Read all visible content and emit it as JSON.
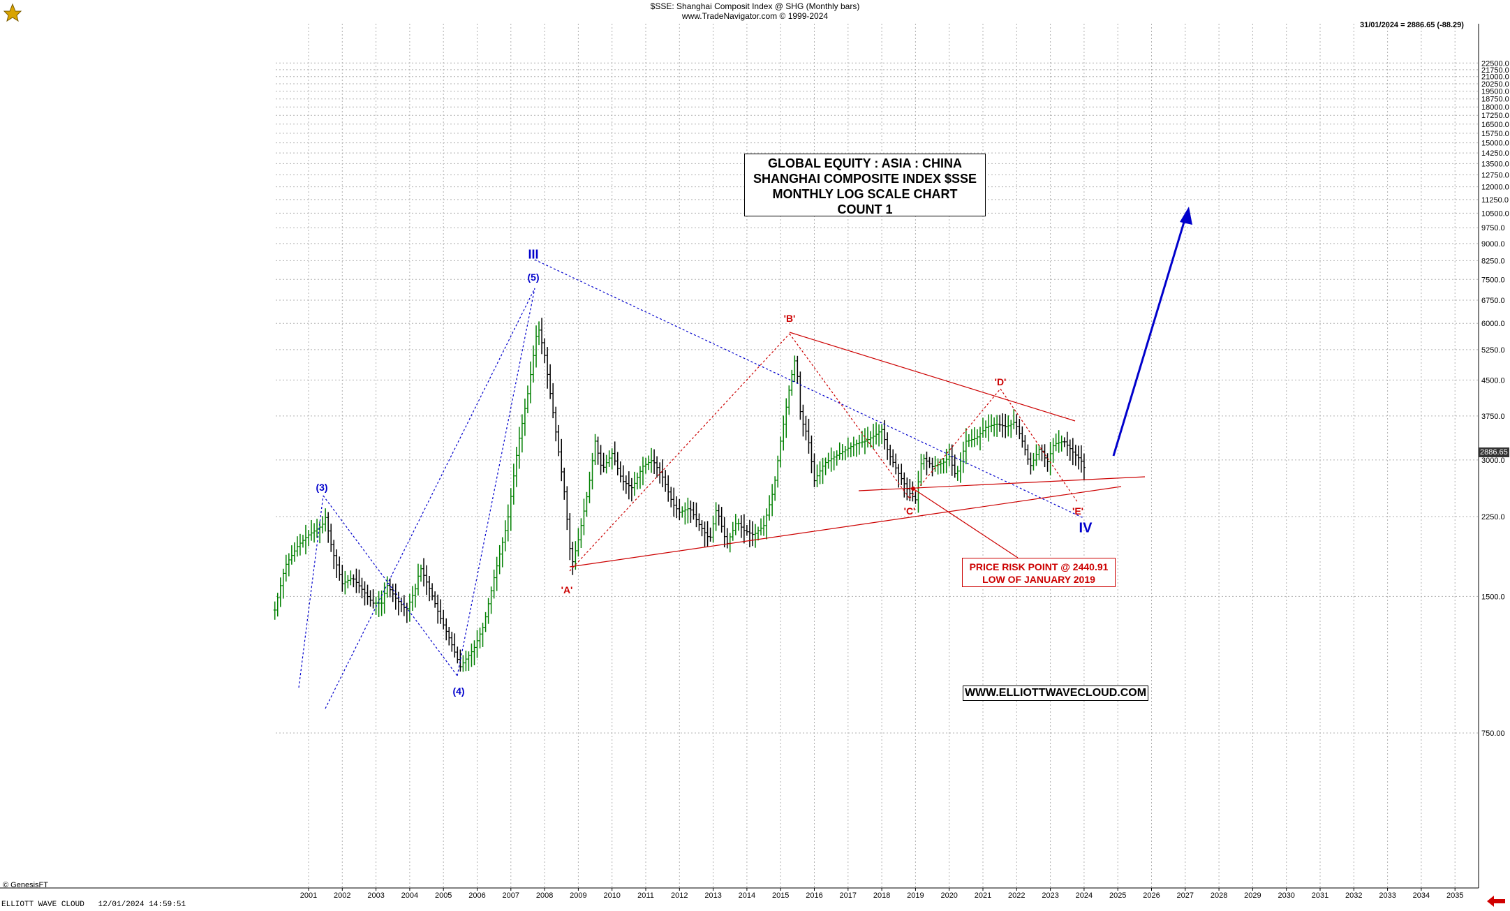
{
  "header": {
    "line1": "$SSE:  Shanghai Composit Index @ SHG  (Monthly bars)",
    "line2": "www.TradeNavigator.com © 1999-2024",
    "last_value": "31/01/2024 = 2886.65 (-88.29)",
    "price_tag": "2886.65"
  },
  "title_box": {
    "line1": "GLOBAL EQUITY : ASIA : CHINA",
    "line2": "SHANGHAI COMPOSITE INDEX $SSE",
    "line3": "MONTHLY LOG SCALE CHART",
    "line4": "COUNT 1"
  },
  "risk_box": {
    "line1": "PRICE RISK POINT @ 2440.91",
    "line2": "LOW OF JANUARY 2019"
  },
  "website": "WWW.ELLIOTTWAVECLOUD.COM",
  "footer": {
    "copyright": "© GenesisFT",
    "status": "ELLIOTT WAVE CLOUD   12/01/2024 14:59:51"
  },
  "labels": {
    "w3": "(3)",
    "w4": "(4)",
    "w5": "(5)",
    "wIII": "III",
    "wIV": "IV",
    "wA": "'A'",
    "wB": "'B'",
    "wC": "'C'",
    "wD": "'D'",
    "wE": "'E'"
  },
  "colors": {
    "blue": "#0000cc",
    "red": "#cc0000",
    "up_bar": "#008000",
    "down_bar": "#000000",
    "grid": "#b0b0b0"
  },
  "chart_data": {
    "type": "line",
    "title": "$SSE:  Shanghai Composit Index @ SHG  (Monthly bars)",
    "scale": "log",
    "x_range": [
      2000.0,
      2035.5
    ],
    "y_range": [
      500,
      22500
    ],
    "xlabel": "",
    "ylabel": "",
    "grid": true,
    "x_ticks": [
      "2001",
      "2002",
      "2003",
      "2004",
      "2005",
      "2006",
      "2007",
      "2008",
      "2009",
      "2010",
      "2011",
      "2012",
      "2013",
      "2014",
      "2015",
      "2016",
      "2017",
      "2018",
      "2019",
      "2020",
      "2021",
      "2022",
      "2023",
      "2024",
      "2025",
      "2026",
      "2027",
      "2028",
      "2029",
      "2030",
      "2031",
      "2032",
      "2033",
      "2034",
      "2035"
    ],
    "y_ticks": [
      22500,
      21750,
      21000,
      20250,
      19500,
      18750,
      18000,
      17250,
      16500,
      15750,
      15000,
      14250,
      13500,
      12750,
      12000,
      11250,
      10500,
      9750,
      9000,
      8250,
      7500,
      6750,
      6000,
      5250,
      4500,
      3750,
      3000,
      2250,
      1500,
      750
    ],
    "y_tick_labels": [
      "22500.0",
      "21750.0",
      "21000.0",
      "20250.0",
      "19500.0",
      "18750.0",
      "18000.0",
      "17250.0",
      "16500.0",
      "15750.0",
      "15000.0",
      "14250.0",
      "13500.0",
      "12750.0",
      "12000.0",
      "11250.0",
      "10500.0",
      "9750.0",
      "9000.0",
      "8250.0",
      "7500.0",
      "6750.0",
      "6000.0",
      "5250.0",
      "4500.0",
      "3750.0",
      "3000.0",
      "2250.0",
      "1500.0",
      "750.00"
    ],
    "series": [
      {
        "name": "$SSE",
        "points": [
          [
            2000.0,
            1400
          ],
          [
            2000.3,
            1750
          ],
          [
            2000.7,
            1950
          ],
          [
            2001.0,
            2050
          ],
          [
            2001.4,
            2150
          ],
          [
            2001.5,
            2240
          ],
          [
            2001.7,
            1900
          ],
          [
            2002.0,
            1600
          ],
          [
            2002.3,
            1650
          ],
          [
            2002.6,
            1550
          ],
          [
            2002.9,
            1450
          ],
          [
            2003.2,
            1450
          ],
          [
            2003.3,
            1600
          ],
          [
            2003.6,
            1480
          ],
          [
            2003.9,
            1400
          ],
          [
            2004.2,
            1580
          ],
          [
            2004.3,
            1750
          ],
          [
            2004.6,
            1550
          ],
          [
            2004.9,
            1350
          ],
          [
            2005.2,
            1200
          ],
          [
            2005.5,
            1050
          ],
          [
            2005.7,
            1100
          ],
          [
            2005.9,
            1150
          ],
          [
            2006.2,
            1300
          ],
          [
            2006.5,
            1650
          ],
          [
            2006.9,
            2200
          ],
          [
            2007.2,
            3200
          ],
          [
            2007.5,
            4200
          ],
          [
            2007.8,
            5950
          ],
          [
            2008.0,
            5100
          ],
          [
            2008.3,
            3600
          ],
          [
            2008.6,
            2500
          ],
          [
            2008.8,
            1750
          ],
          [
            2009.0,
            2000
          ],
          [
            2009.3,
            2600
          ],
          [
            2009.5,
            3300
          ],
          [
            2009.7,
            2850
          ],
          [
            2010.0,
            3100
          ],
          [
            2010.3,
            2700
          ],
          [
            2010.6,
            2600
          ],
          [
            2010.9,
            2900
          ],
          [
            2011.2,
            3000
          ],
          [
            2011.5,
            2750
          ],
          [
            2011.8,
            2400
          ],
          [
            2012.0,
            2300
          ],
          [
            2012.3,
            2350
          ],
          [
            2012.6,
            2150
          ],
          [
            2012.9,
            2000
          ],
          [
            2013.1,
            2350
          ],
          [
            2013.4,
            1950
          ],
          [
            2013.7,
            2200
          ],
          [
            2013.9,
            2100
          ],
          [
            2014.2,
            2050
          ],
          [
            2014.5,
            2150
          ],
          [
            2014.8,
            2600
          ],
          [
            2015.0,
            3300
          ],
          [
            2015.3,
            4500
          ],
          [
            2015.45,
            5100
          ],
          [
            2015.6,
            3700
          ],
          [
            2015.8,
            3400
          ],
          [
            2016.0,
            2700
          ],
          [
            2016.3,
            2950
          ],
          [
            2016.6,
            3050
          ],
          [
            2016.9,
            3150
          ],
          [
            2017.2,
            3250
          ],
          [
            2017.5,
            3300
          ],
          [
            2017.8,
            3400
          ],
          [
            2018.0,
            3500
          ],
          [
            2018.2,
            3100
          ],
          [
            2018.5,
            2800
          ],
          [
            2018.8,
            2550
          ],
          [
            2019.0,
            2450
          ],
          [
            2019.2,
            3050
          ],
          [
            2019.5,
            2900
          ],
          [
            2019.8,
            2950
          ],
          [
            2020.0,
            3050
          ],
          [
            2020.2,
            2750
          ],
          [
            2020.5,
            3300
          ],
          [
            2020.8,
            3350
          ],
          [
            2021.1,
            3550
          ],
          [
            2021.4,
            3600
          ],
          [
            2021.7,
            3550
          ],
          [
            2021.95,
            3640
          ],
          [
            2022.2,
            3250
          ],
          [
            2022.4,
            2900
          ],
          [
            2022.7,
            3200
          ],
          [
            2022.9,
            2950
          ],
          [
            2023.1,
            3250
          ],
          [
            2023.4,
            3300
          ],
          [
            2023.7,
            3100
          ],
          [
            2023.9,
            3000
          ],
          [
            2024.0,
            2886.65
          ]
        ]
      }
    ]
  }
}
